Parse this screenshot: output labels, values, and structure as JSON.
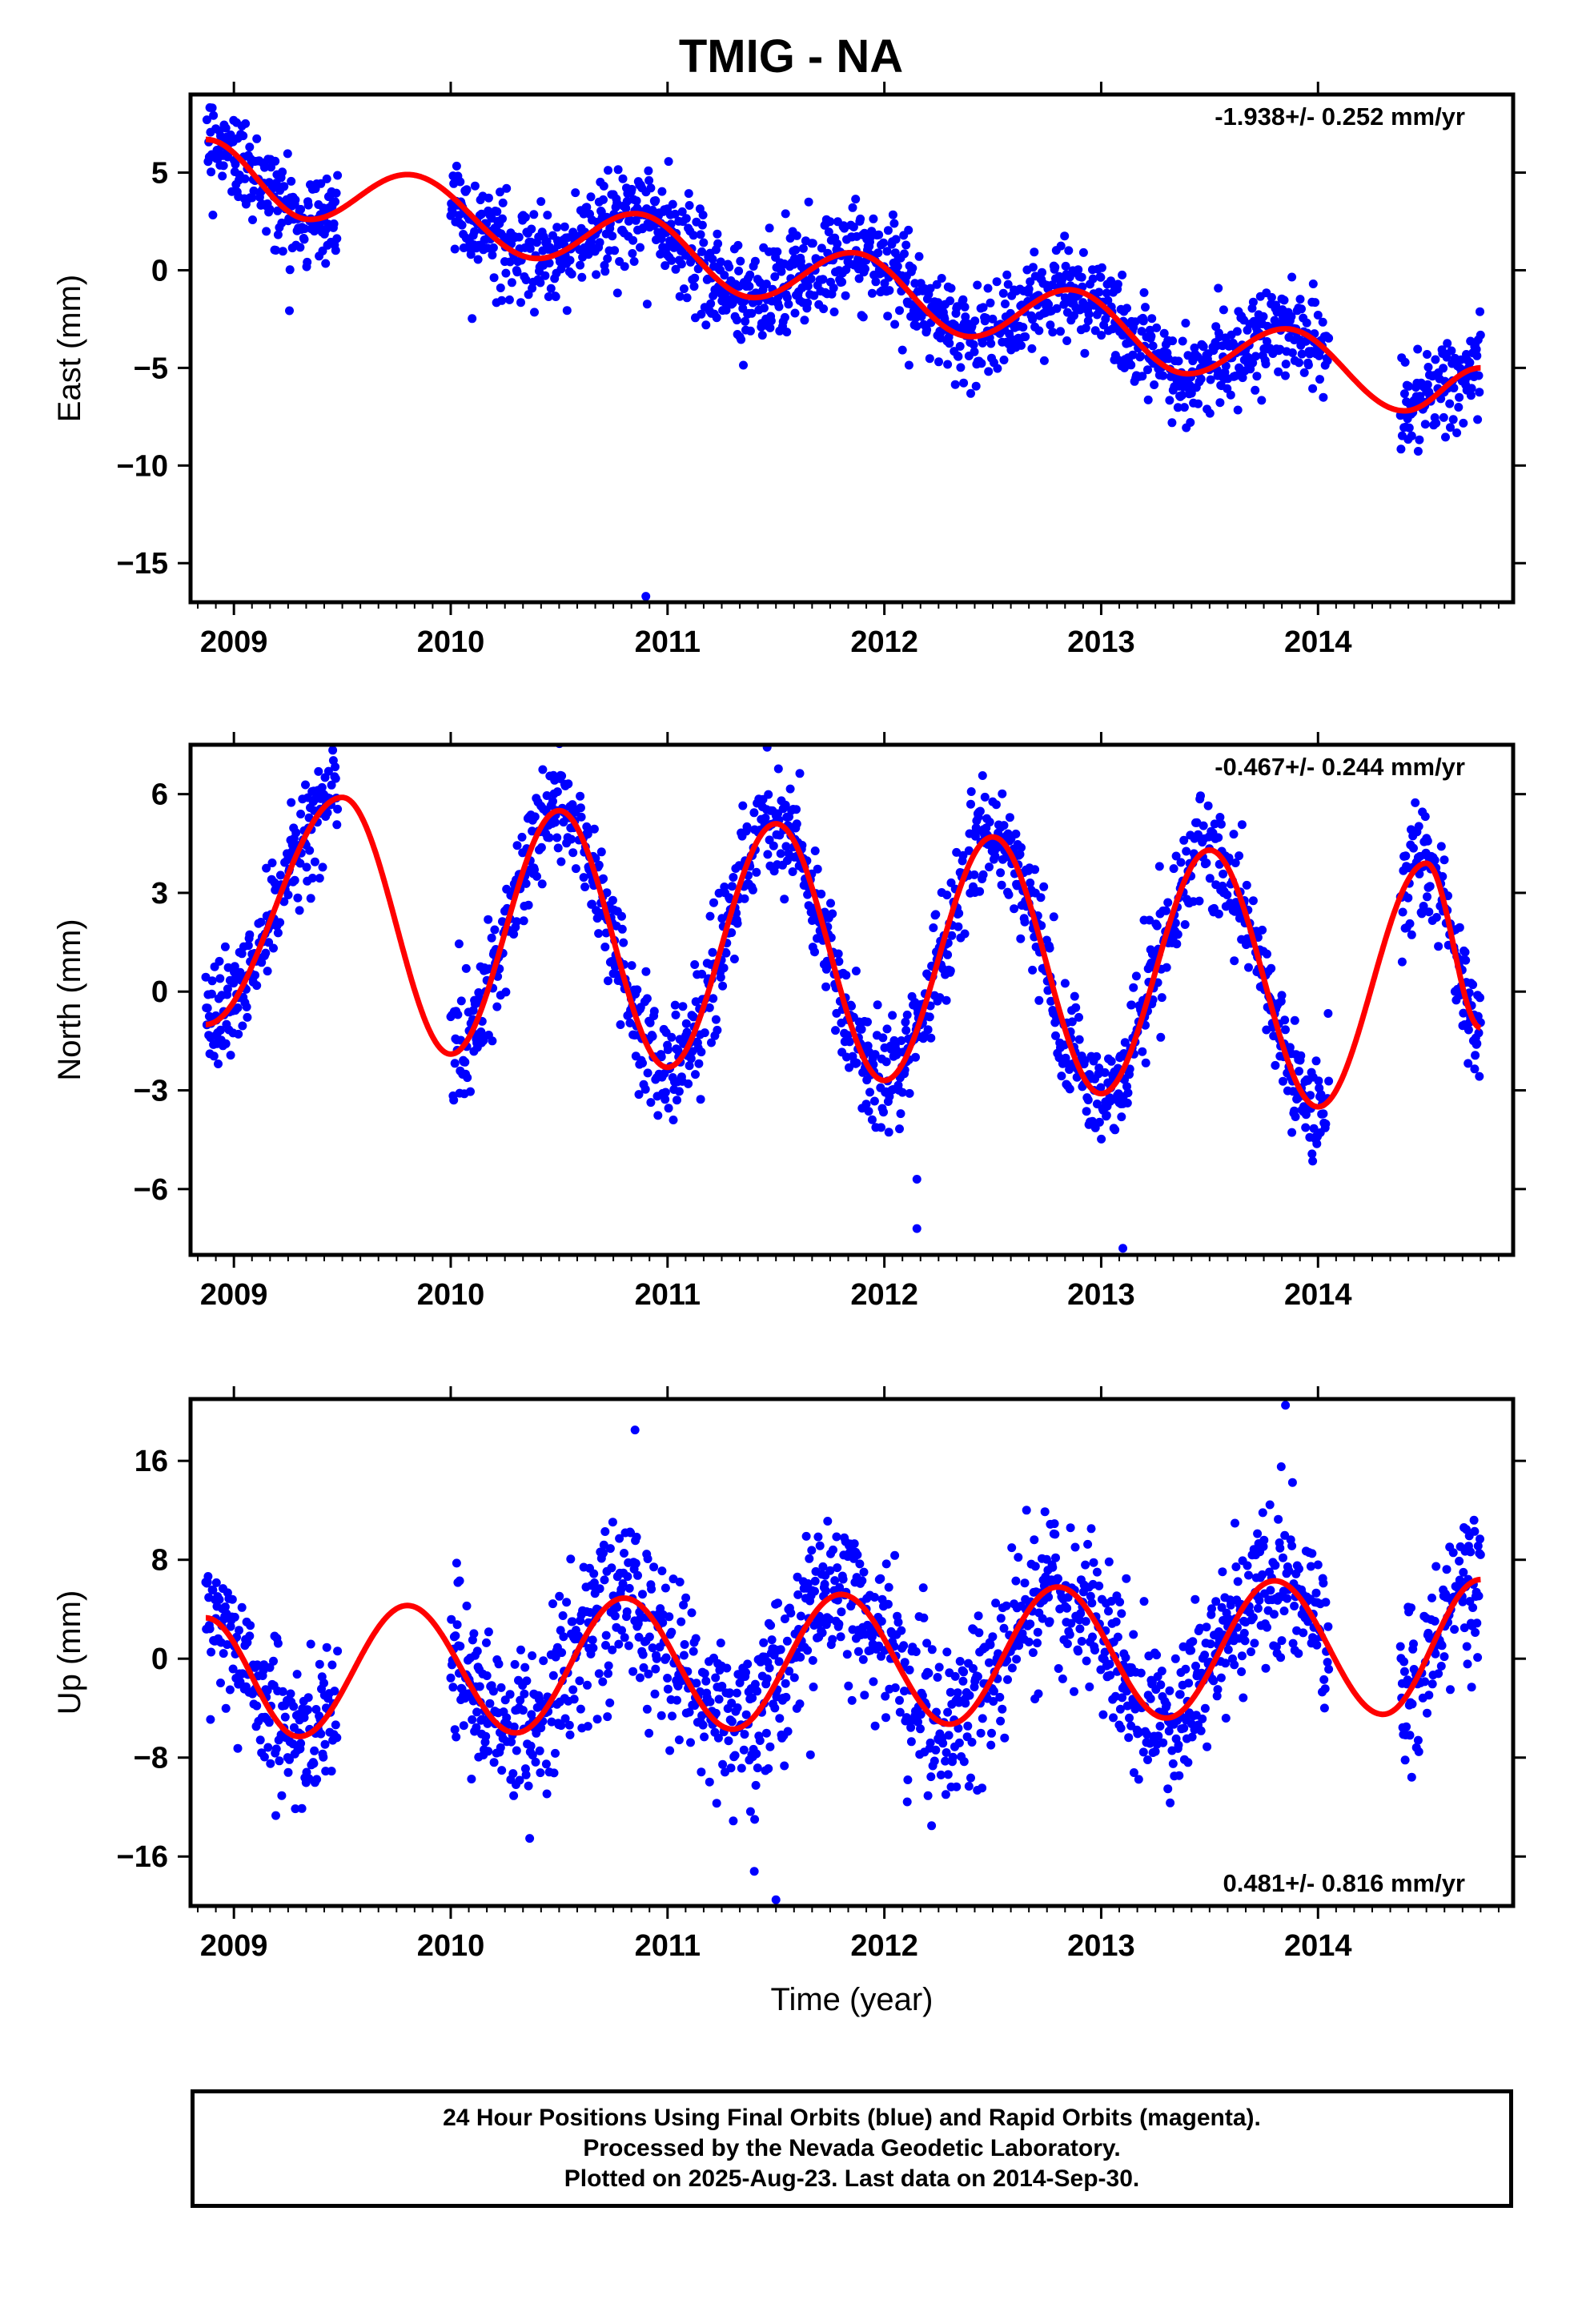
{
  "title": "TMIG - NA",
  "footer": {
    "line1": "24 Hour Positions Using Final Orbits (blue) and Rapid Orbits (magenta).",
    "line2": "Processed by the Nevada Geodetic Laboratory.",
    "line3": "Plotted on 2025-Aug-23. Last data on 2014-Sep-30."
  },
  "colors": {
    "data": "#0000ff",
    "model": "#ff0000",
    "frame": "#000000"
  },
  "chart_data": [
    {
      "type": "scatter",
      "ylabel": "East (mm)",
      "xlabel": "",
      "rate_label": "-1.938+/- 0.252 mm/yr",
      "rate_position": "top-right",
      "xlim": [
        2008.8,
        2014.9
      ],
      "ylim": [
        -17,
        9
      ],
      "x_ticks": [
        2009,
        2010,
        2011,
        2012,
        2013,
        2014
      ],
      "x_tick_labels": [
        "2009",
        "2010",
        "2011",
        "2012",
        "2013",
        "2014"
      ],
      "y_ticks": [
        5,
        0,
        -5,
        -10,
        -15
      ],
      "y_tick_labels": [
        "5",
        "0",
        "−5",
        "−10",
        "−15"
      ],
      "series": [
        {
          "role": "observed",
          "segments": [
            [
              2008.87,
              2009.48
            ],
            [
              2010.0,
              2014.05
            ],
            [
              2014.38,
              2014.75
            ]
          ],
          "model_samples": [
            [
              2008.87,
              6.7
            ],
            [
              2009.35,
              2.6
            ],
            [
              2009.8,
              4.9
            ],
            [
              2010.4,
              0.6
            ],
            [
              2010.85,
              2.9
            ],
            [
              2011.4,
              -1.4
            ],
            [
              2011.85,
              0.9
            ],
            [
              2012.4,
              -3.4
            ],
            [
              2012.85,
              -1.0
            ],
            [
              2013.4,
              -5.3
            ],
            [
              2013.85,
              -3.0
            ],
            [
              2014.4,
              -7.2
            ],
            [
              2014.75,
              -5.0
            ]
          ],
          "scatter_sd": 1.25
        },
        {
          "role": "model",
          "style": "line"
        }
      ],
      "outliers": [
        [
          2010.9,
          -16.7
        ]
      ]
    },
    {
      "type": "scatter",
      "ylabel": "North (mm)",
      "xlabel": "",
      "rate_label": "-0.467+/- 0.244 mm/yr",
      "rate_position": "top-right",
      "xlim": [
        2008.8,
        2014.9
      ],
      "ylim": [
        -8,
        7.5
      ],
      "x_ticks": [
        2009,
        2010,
        2011,
        2012,
        2013,
        2014
      ],
      "x_tick_labels": [
        "2009",
        "2010",
        "2011",
        "2012",
        "2013",
        "2014"
      ],
      "y_ticks": [
        6,
        3,
        0,
        -3,
        -6
      ],
      "y_tick_labels": [
        "6",
        "3",
        "0",
        "−3",
        "−6"
      ],
      "series": [
        {
          "role": "observed",
          "segments": [
            [
              2008.87,
              2009.48
            ],
            [
              2010.0,
              2014.05
            ],
            [
              2014.38,
              2014.75
            ]
          ],
          "model_samples": [
            [
              2008.87,
              -1.0
            ],
            [
              2009.5,
              5.9
            ],
            [
              2010.0,
              -1.9
            ],
            [
              2010.5,
              5.5
            ],
            [
              2011.0,
              -2.3
            ],
            [
              2011.5,
              5.1
            ],
            [
              2012.0,
              -2.7
            ],
            [
              2012.5,
              4.7
            ],
            [
              2013.0,
              -3.1
            ],
            [
              2013.5,
              4.3
            ],
            [
              2014.0,
              -3.5
            ],
            [
              2014.5,
              3.9
            ],
            [
              2014.75,
              -1.1
            ]
          ],
          "scatter_sd": 0.85
        },
        {
          "role": "model",
          "style": "line"
        }
      ],
      "outliers": [
        [
          2012.15,
          -7.2
        ],
        [
          2013.1,
          -7.8
        ],
        [
          2012.15,
          -5.7
        ]
      ]
    },
    {
      "type": "scatter",
      "ylabel": "Up (mm)",
      "xlabel": "Time (year)",
      "rate_label": "0.481+/- 0.816 mm/yr",
      "rate_position": "bottom-right",
      "xlim": [
        2008.8,
        2014.9
      ],
      "ylim": [
        -20,
        21
      ],
      "x_ticks": [
        2009,
        2010,
        2011,
        2012,
        2013,
        2014
      ],
      "x_tick_labels": [
        "2009",
        "2010",
        "2011",
        "2012",
        "2013",
        "2014"
      ],
      "y_ticks": [
        16,
        8,
        0,
        -8,
        -16
      ],
      "y_tick_labels": [
        "16",
        "8",
        "0",
        "−8",
        "−16"
      ],
      "series": [
        {
          "role": "observed",
          "segments": [
            [
              2008.87,
              2009.48
            ],
            [
              2010.0,
              2014.05
            ],
            [
              2014.38,
              2014.75
            ]
          ],
          "model_samples": [
            [
              2008.87,
              3.3
            ],
            [
              2009.3,
              -6.3
            ],
            [
              2009.8,
              4.3
            ],
            [
              2010.3,
              -6.0
            ],
            [
              2010.8,
              4.9
            ],
            [
              2011.3,
              -5.7
            ],
            [
              2011.8,
              5.2
            ],
            [
              2012.3,
              -5.3
            ],
            [
              2012.8,
              5.8
            ],
            [
              2013.3,
              -4.8
            ],
            [
              2013.8,
              6.3
            ],
            [
              2014.3,
              -4.5
            ],
            [
              2014.75,
              6.4
            ]
          ],
          "scatter_sd": 3.2
        },
        {
          "role": "model",
          "style": "line"
        }
      ],
      "outliers": [
        [
          2011.5,
          -19.5
        ],
        [
          2011.4,
          -17.2
        ],
        [
          2013.85,
          20.5
        ],
        [
          2010.85,
          18.5
        ]
      ]
    }
  ]
}
